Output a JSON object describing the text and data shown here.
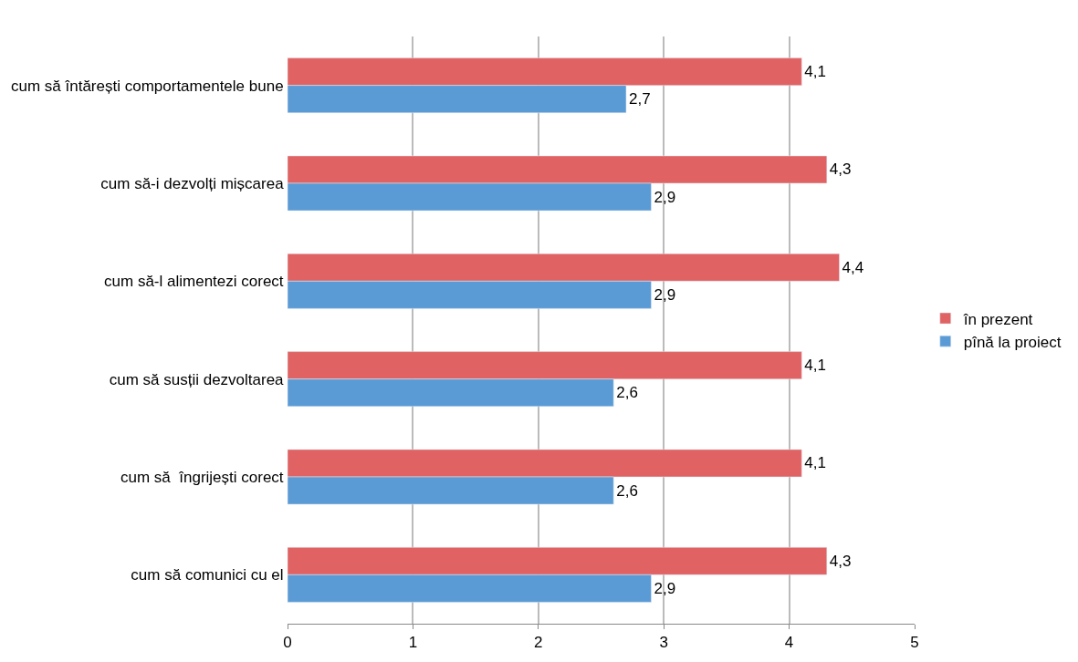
{
  "chart_data": {
    "type": "bar",
    "orientation": "horizontal",
    "categories": [
      "cum să întărești comportamentele bune",
      "cum să-i dezvolți mișcarea",
      "cum să-l alimentezi corect",
      "cum să susții dezvoltarea",
      "cum să  îngrijești corect",
      "cum să comunici cu el"
    ],
    "series": [
      {
        "name": "în prezent",
        "color": "#e06263",
        "values": [
          4.1,
          4.3,
          4.4,
          4.1,
          4.1,
          4.3
        ],
        "value_labels": [
          "4,1",
          "4,3",
          "4,4",
          "4,1",
          "4,1",
          "4,3"
        ]
      },
      {
        "name": "pînă la proiect",
        "color": "#5b9bd5",
        "values": [
          2.7,
          2.9,
          2.9,
          2.6,
          2.6,
          2.9
        ],
        "value_labels": [
          "2,7",
          "2,9",
          "2,9",
          "2,6",
          "2,6",
          "2,9"
        ]
      }
    ],
    "xlim": [
      0,
      5
    ],
    "xticks": [
      0,
      1,
      2,
      3,
      4,
      5
    ],
    "grid": "x",
    "legend": "right"
  }
}
